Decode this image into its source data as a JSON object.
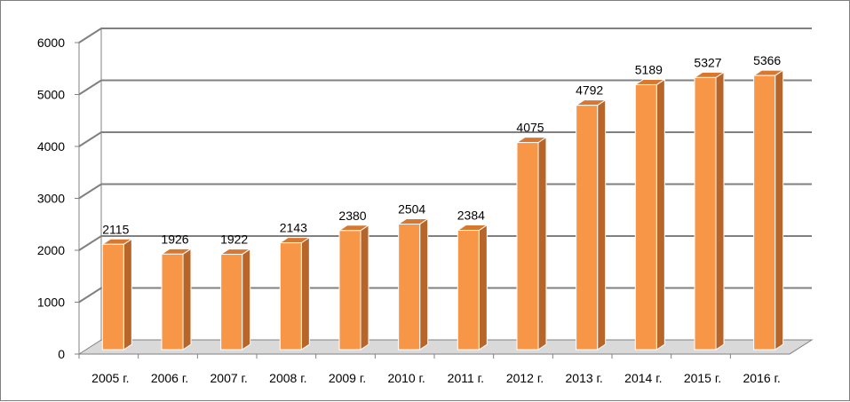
{
  "chart_data": {
    "type": "bar",
    "categories": [
      "2005 г.",
      "2006 г.",
      "2007 г.",
      "2008 г.",
      "2009 г.",
      "2010 г.",
      "2011 г.",
      "2012 г.",
      "2013 г.",
      "2014 г.",
      "2015 г.",
      "2016 г."
    ],
    "values": [
      2115,
      1926,
      1922,
      2143,
      2380,
      2504,
      2384,
      4075,
      4792,
      5189,
      5327,
      5366
    ],
    "title": "",
    "xlabel": "",
    "ylabel": "",
    "ylim": [
      0,
      6000
    ],
    "yticks": [
      0,
      1000,
      2000,
      3000,
      4000,
      5000,
      6000
    ],
    "grid": true,
    "legend": "none",
    "data_labels": true,
    "style": "3d-column",
    "colors": {
      "bar_front": "#F79646",
      "bar_side": "#B8652A",
      "bar_top": "#D9772F",
      "bar_outline": "#ffffff",
      "gridline": "#808080",
      "floor": "#D9D9D9"
    }
  }
}
